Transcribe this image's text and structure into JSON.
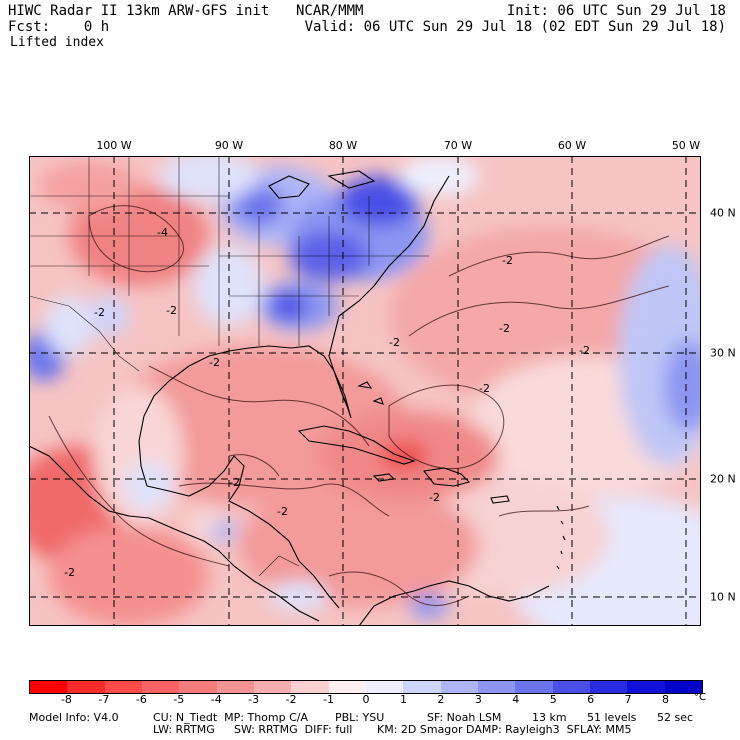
{
  "header": {
    "title_left": "HIWC Radar II 13km ARW-GFS init",
    "org": "NCAR/MMM",
    "init": "Init: 06 UTC Sun 29 Jul 18",
    "fcst": "Fcst:    0 h",
    "valid": "Valid: 06 UTC Sun 29 Jul 18 (02 EDT Sun 29 Jul 18)",
    "field": "Lifted index"
  },
  "map": {
    "longitude_labels": [
      "100 W",
      "90 W",
      "80 W",
      "70 W",
      "60 W",
      "50 W"
    ],
    "latitude_labels": [
      "40 N",
      "30 N",
      "20 N",
      "10 N"
    ],
    "contour_labels": [
      "-4",
      "-2",
      "-2",
      "-2",
      "-2",
      "-2",
      "-2",
      "-2",
      "-2",
      "-2",
      "-2",
      "-2",
      "-2"
    ]
  },
  "colorbar": {
    "ticks": [
      "-8",
      "-7",
      "-6",
      "-5",
      "-4",
      "-3",
      "-2",
      "-1",
      "0",
      "1",
      "2",
      "3",
      "4",
      "5",
      "6",
      "7",
      "8"
    ],
    "unit": "°C",
    "colors": [
      "#ff0000",
      "#ff2a2a",
      "#ff4a4a",
      "#fa6464",
      "#f57c7c",
      "#f29494",
      "#f5aeae",
      "#fad0d0",
      "#fdf0f0",
      "#eef0fe",
      "#cfd4fb",
      "#aeb6f7",
      "#8c96f2",
      "#6c74ec",
      "#4a50e6",
      "#2a2ce0",
      "#1010d8",
      "#0000c8"
    ]
  },
  "footer": {
    "line1_a": "Model Info: V4.0",
    "line1_b": "CU: N_Tiedt  MP: Thomp C/A",
    "line1_c": "PBL: YSU",
    "line1_d": "SF: Noah LSM",
    "line1_e": "13 km",
    "line1_f": "51 levels",
    "line1_g": "52 sec",
    "line2_a": "LW: RRTMG",
    "line2_b": "SW: RRTMG  DIFF: full",
    "line2_c": "KM: 2D Smagor DAMP: Rayleigh3  SFLAY: MM5"
  }
}
